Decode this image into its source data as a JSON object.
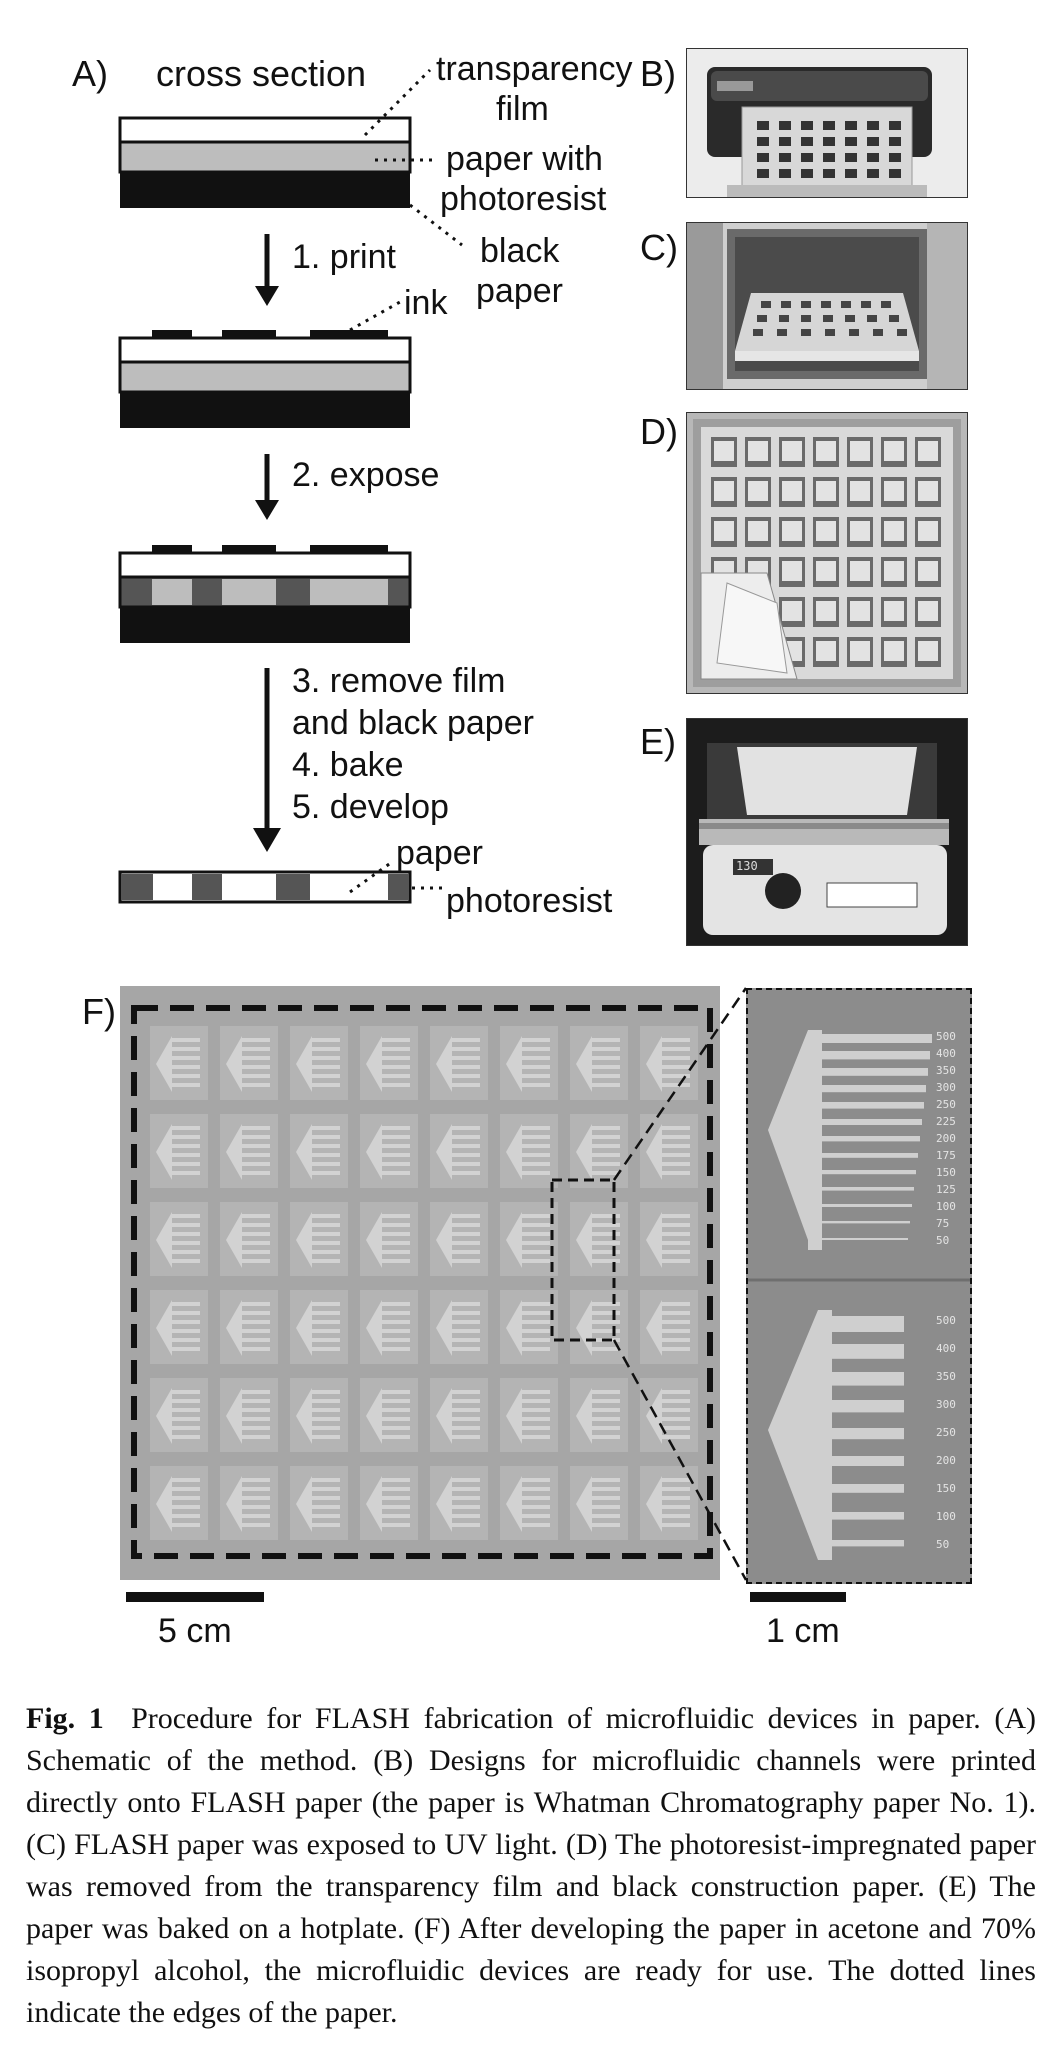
{
  "panel_a": {
    "letter": "A)",
    "title": "cross section",
    "labels": {
      "transparency_film_1": "transparency",
      "transparency_film_2": "film",
      "paper_with_1": "paper with",
      "paper_with_2": "photoresist",
      "black_paper_1": "black",
      "black_paper_2": "paper",
      "ink": "ink",
      "paper": "paper",
      "photoresist": "photoresist"
    },
    "steps": {
      "step1": "1. print",
      "step2": "2. expose",
      "step3a": "3. remove film",
      "step3b": "and black paper",
      "step4": "4. bake",
      "step5": "5. develop"
    }
  },
  "panel_letters": {
    "b": "B)",
    "c": "C)",
    "d": "D)",
    "e": "E)",
    "f": "F)"
  },
  "hotplate_display": "130",
  "scale_bars": {
    "left": "5 cm",
    "right": "1 cm"
  },
  "zoom_labels_top": [
    "500",
    "400",
    "350",
    "300",
    "250",
    "225",
    "200",
    "175",
    "150",
    "125",
    "100",
    "75",
    "50"
  ],
  "zoom_labels_bottom": [
    "500",
    "400",
    "350",
    "300",
    "250",
    "200",
    "150",
    "100",
    "50"
  ],
  "caption": {
    "fig_label": "Fig. 1",
    "text": "Procedure for FLASH fabrication of microfluidic devices in paper. (A) Schematic of the method. (B) Designs for microfluidic channels were printed directly onto FLASH paper (the paper is Whatman Chromatography paper No. 1). (C) FLASH paper was exposed to UV light. (D) The photoresist-impregnated paper was removed from the transparency film and black construction paper. (E) The paper was baked on a hotplate. (F) After developing the paper in acetone and 70% isopropyl alcohol, the microfluidic devices are ready for use. The dotted lines indicate the edges of the paper."
  }
}
